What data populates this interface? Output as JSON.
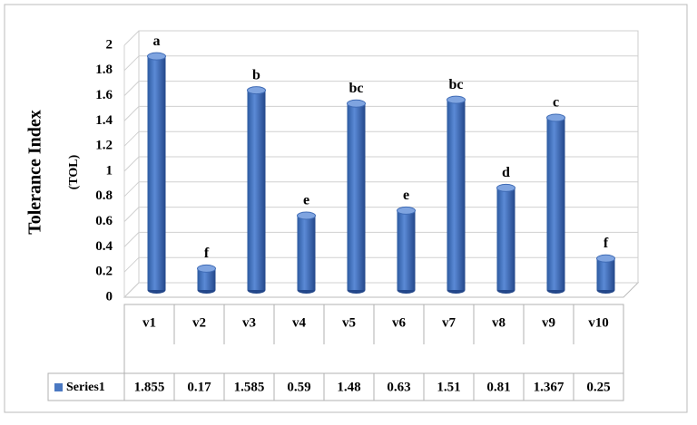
{
  "chart_data": {
    "type": "bar",
    "y_label": "Tolerance Index",
    "y_sublabel": "(TOL)",
    "categories": [
      "v1",
      "v2",
      "v3",
      "v4",
      "v5",
      "v6",
      "v7",
      "v8",
      "v9",
      "v10"
    ],
    "series": [
      {
        "name": "Series1",
        "color": "#4a78c2",
        "values": [
          1.855,
          0.17,
          1.585,
          0.59,
          1.48,
          0.63,
          1.51,
          0.81,
          1.367,
          0.25
        ]
      }
    ],
    "annotations": [
      "a",
      "f",
      "b",
      "e",
      "bc",
      "e",
      "bc",
      "d",
      "c",
      "f"
    ],
    "ylim": [
      0,
      2
    ],
    "yticks": [
      0,
      0.2,
      0.4,
      0.6,
      0.8,
      1,
      1.2,
      1.4,
      1.6,
      1.8,
      2
    ],
    "grid": true
  }
}
